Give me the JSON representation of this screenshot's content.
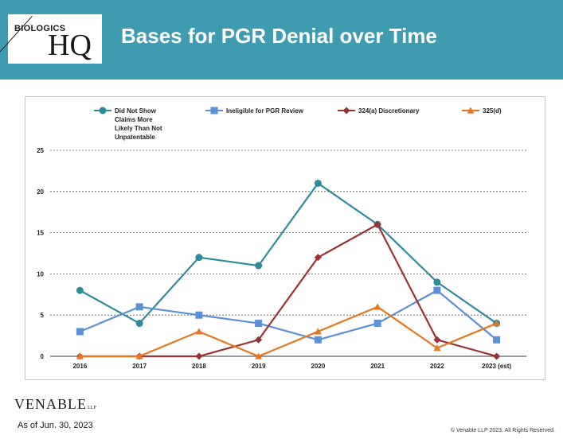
{
  "header": {
    "logo_top": "BIOLOGICS",
    "logo_main": "HQ",
    "title": "Bases for PGR Denial over Time"
  },
  "footer": {
    "brand": "VENABLE",
    "brand_suffix": "LLP",
    "date": "As of Jun. 30, 2023",
    "copyright": "© Venable LLP 2023. All Rights Reserved."
  },
  "colors": {
    "header_bg": "#3e9bb0",
    "series_1": "#2e8b9a",
    "series_2": "#5b8fd6",
    "series_3": "#9b3232",
    "series_4": "#e8761e"
  },
  "chart_data": {
    "type": "line",
    "categories": [
      "2016",
      "2017",
      "2018",
      "2019",
      "2020",
      "2021",
      "2022",
      "2023 (est)"
    ],
    "ylim": [
      0,
      25
    ],
    "yticks": [
      0,
      5,
      10,
      15,
      20,
      25
    ],
    "grid": "horizontal dashed",
    "legend": "top",
    "series": [
      {
        "name": "Did Not Show Claims More Likely Than Not Unpatentable",
        "marker": "circle",
        "color": "#2e8b9a",
        "values": [
          8,
          4,
          12,
          11,
          21,
          16,
          9,
          4
        ]
      },
      {
        "name": "Ineligible for PGR Review",
        "marker": "square",
        "color": "#5b8fd6",
        "values": [
          3,
          6,
          5,
          4,
          2,
          4,
          8,
          2
        ]
      },
      {
        "name": "324(a) Discretionary",
        "marker": "diamond",
        "color": "#9b3232",
        "values": [
          0,
          0,
          0,
          2,
          12,
          16,
          2,
          0
        ]
      },
      {
        "name": "325(d)",
        "marker": "triangle",
        "color": "#e8761e",
        "values": [
          0,
          0,
          3,
          0,
          3,
          6,
          1,
          4
        ]
      }
    ]
  }
}
